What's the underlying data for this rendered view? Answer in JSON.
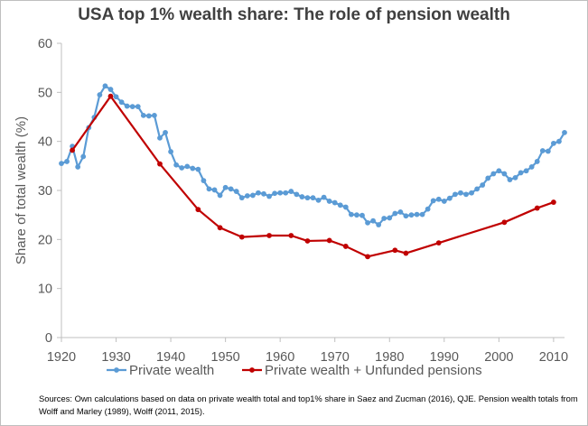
{
  "chart_data": {
    "type": "line",
    "title": "USA top 1% wealth share: The role of pension wealth",
    "xlabel": "",
    "ylabel": "Share of total wealth (%)",
    "xlim": [
      1920,
      2012
    ],
    "ylim": [
      0,
      60
    ],
    "x_ticks": [
      1920,
      1930,
      1940,
      1950,
      1960,
      1970,
      1980,
      1990,
      2000,
      2010
    ],
    "y_ticks": [
      0,
      10,
      20,
      30,
      40,
      50,
      60
    ],
    "grid": false,
    "legend_position": "bottom",
    "series": [
      {
        "name": "Private wealth",
        "color": "#5b9bd5",
        "x": [
          1920,
          1921,
          1922,
          1923,
          1924,
          1925,
          1926,
          1927,
          1928,
          1929,
          1930,
          1931,
          1932,
          1933,
          1934,
          1935,
          1936,
          1937,
          1938,
          1939,
          1940,
          1941,
          1942,
          1943,
          1944,
          1945,
          1946,
          1947,
          1948,
          1949,
          1950,
          1951,
          1952,
          1953,
          1954,
          1955,
          1956,
          1957,
          1958,
          1959,
          1960,
          1961,
          1962,
          1963,
          1964,
          1965,
          1966,
          1967,
          1968,
          1969,
          1970,
          1971,
          1972,
          1973,
          1974,
          1975,
          1976,
          1977,
          1978,
          1979,
          1980,
          1981,
          1982,
          1983,
          1984,
          1985,
          1986,
          1987,
          1988,
          1989,
          1990,
          1991,
          1992,
          1993,
          1994,
          1995,
          1996,
          1997,
          1998,
          1999,
          2000,
          2001,
          2002,
          2003,
          2004,
          2005,
          2006,
          2007,
          2008,
          2009,
          2010,
          2011,
          2012
        ],
        "values": [
          35.5,
          35.9,
          39.0,
          34.8,
          36.9,
          42.8,
          44.9,
          49.5,
          51.3,
          50.6,
          49.1,
          48.0,
          47.2,
          47.1,
          47.1,
          45.3,
          45.2,
          45.3,
          40.7,
          41.8,
          37.9,
          35.2,
          34.6,
          34.9,
          34.5,
          34.3,
          32.0,
          30.3,
          30.1,
          29.0,
          30.6,
          30.3,
          29.8,
          28.5,
          28.9,
          29.0,
          29.5,
          29.3,
          28.8,
          29.4,
          29.5,
          29.5,
          29.8,
          29.2,
          28.7,
          28.5,
          28.5,
          28.0,
          28.6,
          27.8,
          27.5,
          27.0,
          26.6,
          25.1,
          25.0,
          24.9,
          23.4,
          23.8,
          23.0,
          24.3,
          24.4,
          25.3,
          25.6,
          24.8,
          25.0,
          25.1,
          25.1,
          26.2,
          27.9,
          28.2,
          27.8,
          28.4,
          29.2,
          29.5,
          29.2,
          29.5,
          30.3,
          31.1,
          32.5,
          33.4,
          34.0,
          33.4,
          32.2,
          32.6,
          33.6,
          34.0,
          34.8,
          35.9,
          38.1,
          38.0,
          39.6,
          40.0,
          41.8
        ]
      },
      {
        "name": "Private wealth + Unfunded pensions",
        "color": "#c00000",
        "x": [
          1922,
          1929,
          1938,
          1945,
          1949,
          1953,
          1958,
          1962,
          1965,
          1969,
          1972,
          1976,
          1981,
          1983,
          1989,
          2001,
          2007,
          2010
        ],
        "values": [
          38.2,
          49.2,
          35.4,
          26.1,
          22.4,
          20.5,
          20.8,
          20.8,
          19.7,
          19.8,
          18.6,
          16.5,
          17.8,
          17.2,
          19.3,
          23.5,
          26.4,
          27.6
        ]
      }
    ]
  },
  "sources": {
    "line1": "Sources: Own calculations based on data on private wealth total and top1% share in Saez and Zucman (2016), QJE. Pension wealth totals from",
    "line2": "Wolff and Marley (1989),  Wolff (2011, 2015)."
  }
}
